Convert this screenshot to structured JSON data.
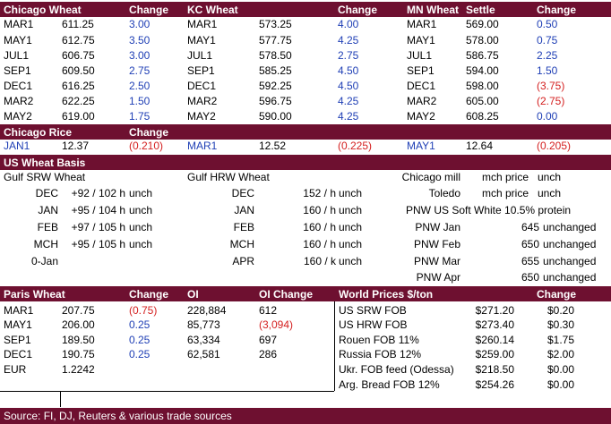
{
  "top_table": {
    "headers": [
      "Chicago Wheat",
      "Change",
      "KC Wheat",
      "Change",
      "MN Wheat",
      "Settle",
      "Change"
    ],
    "chicago": [
      {
        "m": "MAR1",
        "p": "611.25",
        "c": "3.00",
        "neg": false
      },
      {
        "m": "MAY1",
        "p": "612.75",
        "c": "3.50",
        "neg": false
      },
      {
        "m": "JUL1",
        "p": "606.75",
        "c": "3.00",
        "neg": false
      },
      {
        "m": "SEP1",
        "p": "609.50",
        "c": "2.75",
        "neg": false
      },
      {
        "m": "DEC1",
        "p": "616.25",
        "c": "2.50",
        "neg": false
      },
      {
        "m": "MAR2",
        "p": "622.25",
        "c": "1.50",
        "neg": false
      },
      {
        "m": "MAY2",
        "p": "619.00",
        "c": "1.75",
        "neg": false
      }
    ],
    "kc": [
      {
        "m": "MAR1",
        "p": "573.25",
        "c": "4.00",
        "neg": false
      },
      {
        "m": "MAY1",
        "p": "577.75",
        "c": "4.25",
        "neg": false
      },
      {
        "m": "JUL1",
        "p": "578.50",
        "c": "2.75",
        "neg": false
      },
      {
        "m": "SEP1",
        "p": "585.25",
        "c": "4.50",
        "neg": false
      },
      {
        "m": "DEC1",
        "p": "592.25",
        "c": "4.50",
        "neg": false
      },
      {
        "m": "MAR2",
        "p": "596.75",
        "c": "4.25",
        "neg": false
      },
      {
        "m": "MAY2",
        "p": "590.00",
        "c": "4.25",
        "neg": false
      }
    ],
    "mn": [
      {
        "m": "MAR1",
        "p": "569.00",
        "c": "0.50",
        "neg": false
      },
      {
        "m": "MAY1",
        "p": "578.00",
        "c": "0.75",
        "neg": false
      },
      {
        "m": "JUL1",
        "p": "586.75",
        "c": "2.25",
        "neg": false
      },
      {
        "m": "SEP1",
        "p": "594.00",
        "c": "1.50",
        "neg": false
      },
      {
        "m": "DEC1",
        "p": "598.00",
        "c": "(3.75)",
        "neg": true
      },
      {
        "m": "MAR2",
        "p": "605.00",
        "c": "(2.75)",
        "neg": true
      },
      {
        "m": "MAY2",
        "p": "608.25",
        "c": "0.00",
        "neg": false
      }
    ]
  },
  "rice": {
    "header": "Chicago Rice",
    "change_label": "Change",
    "items": [
      {
        "m": "JAN1",
        "p": "12.37",
        "c": "(0.210)"
      },
      {
        "m": "MAR1",
        "p": "12.52",
        "c": "(0.225)"
      },
      {
        "m": "MAY1",
        "p": "12.64",
        "c": "(0.205)"
      }
    ]
  },
  "basis": {
    "header": "US Wheat Basis",
    "gulf_srw_title": "Gulf SRW Wheat",
    "gulf_hrw_title": "Gulf HRW Wheat",
    "srw": [
      {
        "m": "DEC",
        "v": "+92 / 102 h",
        "u": "unch"
      },
      {
        "m": "JAN",
        "v": "+95 /  104 h",
        "u": "unch"
      },
      {
        "m": "FEB",
        "v": "+97 / 105 h",
        "u": "unch"
      },
      {
        "m": "MCH",
        "v": "+95 / 105 h",
        "u": "unch"
      },
      {
        "m": "0-Jan",
        "v": "",
        "u": ""
      }
    ],
    "hrw": [
      {
        "m": "DEC",
        "v": "152 / h",
        "u": "unch"
      },
      {
        "m": "JAN",
        "v": "160 / h",
        "u": "unch"
      },
      {
        "m": "FEB",
        "v": "160 / h",
        "u": "unch"
      },
      {
        "m": "MCH",
        "v": "160 / h",
        "u": "unch"
      },
      {
        "m": "APR",
        "v": "160 / k",
        "u": "unch"
      }
    ],
    "mill": [
      {
        "n": "Chicago mill",
        "p": "mch price",
        "u": "unch"
      },
      {
        "n": "Toledo",
        "p": "mch price",
        "u": "unch"
      }
    ],
    "pnw_title": "PNW US Soft White 10.5% protein",
    "pnw": [
      {
        "n": "PNW Jan",
        "v": "645",
        "u": "unchanged"
      },
      {
        "n": "PNW Feb",
        "v": "650",
        "u": "unchanged"
      },
      {
        "n": "PNW Mar",
        "v": "655",
        "u": "unchanged"
      },
      {
        "n": "PNW Apr",
        "v": "650",
        "u": "unchanged"
      }
    ]
  },
  "paris": {
    "headers": [
      "Paris Wheat",
      "Change",
      "OI",
      "OI Change"
    ],
    "rows": [
      {
        "m": "MAR1",
        "p": "207.75",
        "c": "(0.75)",
        "cneg": true,
        "oi": "228,884",
        "oic": "612",
        "oineg": false
      },
      {
        "m": "MAY1",
        "p": "206.00",
        "c": "0.25",
        "cneg": false,
        "oi": "85,773",
        "oic": "(3,094)",
        "oineg": true
      },
      {
        "m": "SEP1",
        "p": "189.50",
        "c": "0.25",
        "cneg": false,
        "oi": "63,334",
        "oic": "697",
        "oineg": false
      },
      {
        "m": "DEC1",
        "p": "190.75",
        "c": "0.25",
        "cneg": false,
        "oi": "62,581",
        "oic": "286",
        "oineg": false
      }
    ],
    "eur_label": "EUR",
    "eur_value": "1.2242"
  },
  "world": {
    "headers": [
      "World Prices $/ton",
      "Change"
    ],
    "rows": [
      {
        "n": "US SRW FOB",
        "p": "$271.20",
        "c": "$0.20"
      },
      {
        "n": "US HRW FOB",
        "p": "$273.40",
        "c": "$0.30"
      },
      {
        "n": "Rouen FOB 11%",
        "p": "$260.14",
        "c": "$1.75"
      },
      {
        "n": "Russia FOB 12%",
        "p": "$259.00",
        "c": "$2.00"
      },
      {
        "n": "Ukr. FOB feed (Odessa)",
        "p": "$218.50",
        "c": "$0.00"
      },
      {
        "n": "Arg. Bread FOB 12%",
        "p": "$254.26",
        "c": "$0.00"
      }
    ]
  },
  "footer": "Source: FI, DJ, Reuters & various trade sources",
  "colors": {
    "header_bg": "#6e1030",
    "positive": "#1f3fb5",
    "negative": "#d42020"
  }
}
